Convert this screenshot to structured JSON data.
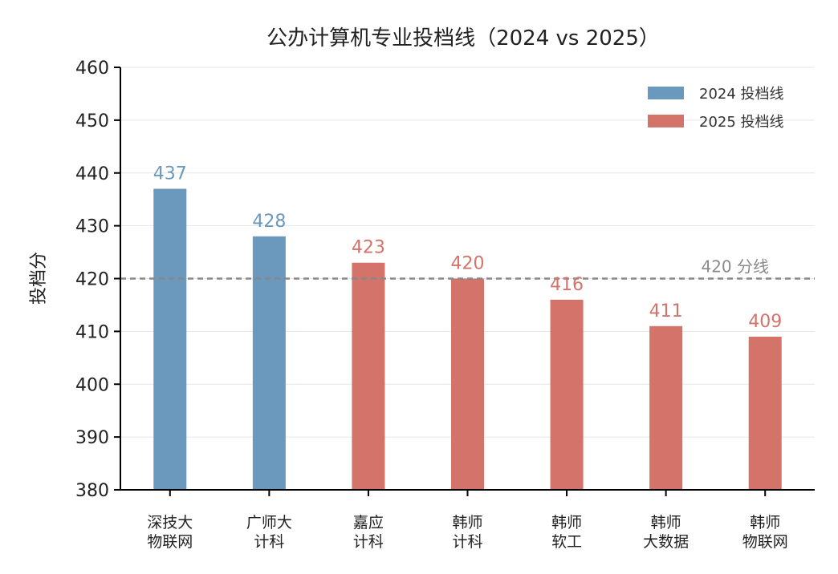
{
  "chart_data": {
    "type": "bar",
    "title": "公办计算机专业投档线（2024 vs 2025）",
    "xlabel": "",
    "ylabel": "投档分",
    "ylim": [
      380,
      460
    ],
    "yticks": [
      380,
      390,
      400,
      410,
      420,
      430,
      440,
      450,
      460
    ],
    "grid": "horizontal",
    "legend_position": "top-right",
    "categories": [
      [
        "深技大",
        "物联网"
      ],
      [
        "广师大",
        "计科"
      ],
      [
        "嘉应",
        "计科"
      ],
      [
        "韩师",
        "计科"
      ],
      [
        "韩师",
        "软工"
      ],
      [
        "韩师",
        "大数据"
      ],
      [
        "韩师",
        "物联网"
      ]
    ],
    "series": [
      {
        "name": "2024 投档线",
        "color": "#6b98bd",
        "values": [
          437,
          428,
          null,
          null,
          null,
          null,
          null
        ]
      },
      {
        "name": "2025 投档线",
        "color": "#d4736a",
        "values": [
          null,
          null,
          423,
          420,
          416,
          411,
          409
        ]
      }
    ],
    "reference_line": {
      "value": 420,
      "label": "420 分线",
      "color": "#888888",
      "style": "dashed"
    }
  }
}
